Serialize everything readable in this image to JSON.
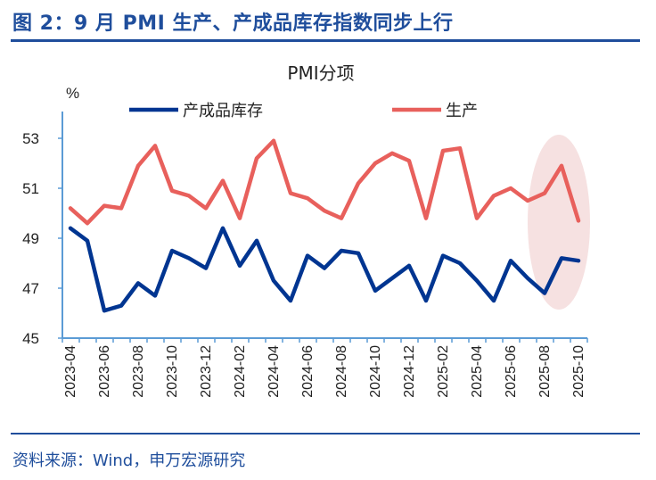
{
  "header": {
    "title": "图 2：9 月 PMI 生产、产成品库存指数同步上行"
  },
  "footer": {
    "source": "资料来源：Wind，申万宏源研究"
  },
  "chart_data": {
    "type": "line",
    "title": "PMI分项",
    "ylabel": "%",
    "ylim": [
      45,
      53
    ],
    "yticks": [
      "45",
      "47",
      "49",
      "51",
      "53"
    ],
    "x": [
      "2023-04",
      "2023-05",
      "2023-06",
      "2023-07",
      "2023-08",
      "2023-09",
      "2023-10",
      "2023-11",
      "2023-12",
      "2024-01",
      "2024-02",
      "2024-03",
      "2024-04",
      "2024-05",
      "2024-06",
      "2024-07",
      "2024-08",
      "2024-09",
      "2024-10",
      "2024-11",
      "2024-12",
      "2025-01",
      "2025-02",
      "2025-03",
      "2025-04",
      "2025-05",
      "2025-06",
      "2025-07",
      "2025-08",
      "2025-09",
      "2025-10"
    ],
    "xticklabels": [
      "2023-04",
      "2023-06",
      "2023-08",
      "2023-10",
      "2023-12",
      "2024-02",
      "2024-04",
      "2024-06",
      "2024-08",
      "2024-10",
      "2024-12",
      "2025-02",
      "2025-04",
      "2025-06",
      "2025-08",
      "2025-10"
    ],
    "legend_position": "top",
    "series": [
      {
        "name": "产成品库存",
        "color": "#003591",
        "values": [
          49.4,
          48.9,
          46.1,
          46.3,
          47.2,
          46.7,
          48.5,
          48.2,
          47.8,
          49.4,
          47.9,
          48.9,
          47.3,
          46.5,
          48.3,
          47.8,
          48.5,
          48.4,
          46.9,
          47.4,
          47.9,
          46.5,
          48.3,
          48.0,
          47.3,
          46.5,
          48.1,
          47.4,
          46.8,
          48.2,
          48.1
        ]
      },
      {
        "name": "生产",
        "color": "#e8605c",
        "values": [
          50.2,
          49.6,
          50.3,
          50.2,
          51.9,
          52.7,
          50.9,
          50.7,
          50.2,
          51.3,
          49.8,
          52.2,
          52.9,
          50.8,
          50.6,
          50.1,
          49.8,
          51.2,
          52.0,
          52.4,
          52.1,
          49.8,
          52.5,
          52.6,
          49.8,
          50.7,
          51.0,
          50.5,
          50.8,
          51.9,
          49.7
        ]
      }
    ],
    "highlight": {
      "from": "2025-08",
      "to": "2025-10",
      "color": "#f5dcdc"
    }
  }
}
